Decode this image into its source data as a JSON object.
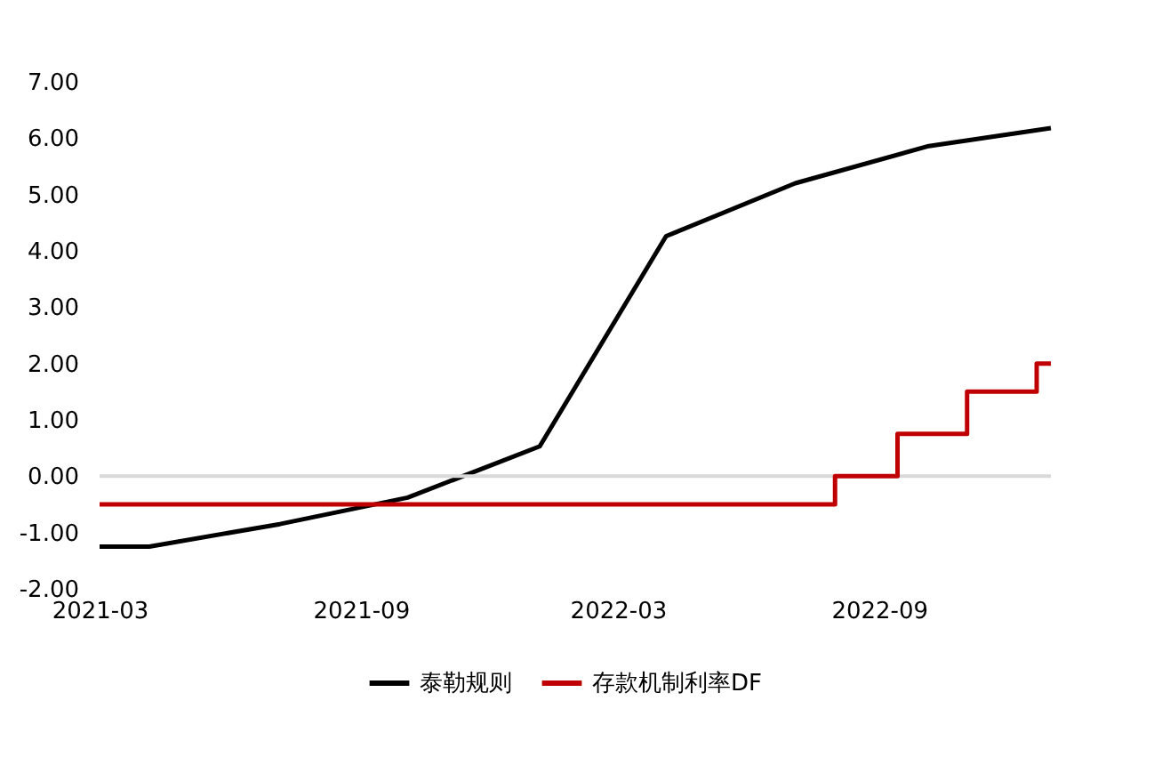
{
  "chart_data": {
    "type": "line",
    "x": [
      "2021-03-01",
      "2021-04-05",
      "2021-07-06",
      "2021-10-04",
      "2022-01-05",
      "2022-04-04",
      "2022-07-04",
      "2022-10-06",
      "2022-12-31"
    ],
    "series": [
      {
        "name": "泰勒规则",
        "color": "#000000",
        "values": [
          -1.25,
          -1.25,
          -0.85,
          -0.38,
          0.53,
          4.26,
          5.2,
          5.86,
          6.18
        ]
      },
      {
        "name": "存款机制利率DF",
        "color": "#c00000",
        "type": "step",
        "x": [
          "2021-03-01",
          "2022-08-01",
          "2022-09-14",
          "2022-11-02",
          "2022-12-21",
          "2022-12-31"
        ],
        "values": [
          -0.5,
          0,
          0.75,
          1.5,
          2.0,
          2.0
        ]
      }
    ],
    "xlim": [
      "2021-03-01",
      "2022-12-31"
    ],
    "xticks": [
      "2021-03",
      "2021-09",
      "2022-03",
      "2022-09"
    ],
    "ylim": [
      -2,
      7
    ],
    "yticks": [
      {
        "value": -2,
        "label": "-2.00"
      },
      {
        "value": -1,
        "label": "-1.00"
      },
      {
        "value": 0,
        "label": "0.00"
      },
      {
        "value": 1,
        "label": "1.00"
      },
      {
        "value": 2,
        "label": "2.00"
      },
      {
        "value": 3,
        "label": "3.00"
      },
      {
        "value": 4,
        "label": "4.00"
      },
      {
        "value": 5,
        "label": "5.00"
      },
      {
        "value": 6,
        "label": "6.00"
      },
      {
        "value": 7,
        "label": "7.00"
      }
    ],
    "ref_lines": [
      {
        "axis": "y",
        "value": 0,
        "color": "#d9d9d9"
      }
    ],
    "grid": false,
    "legend": "bottom",
    "line_style": "solid",
    "marker": "none"
  }
}
